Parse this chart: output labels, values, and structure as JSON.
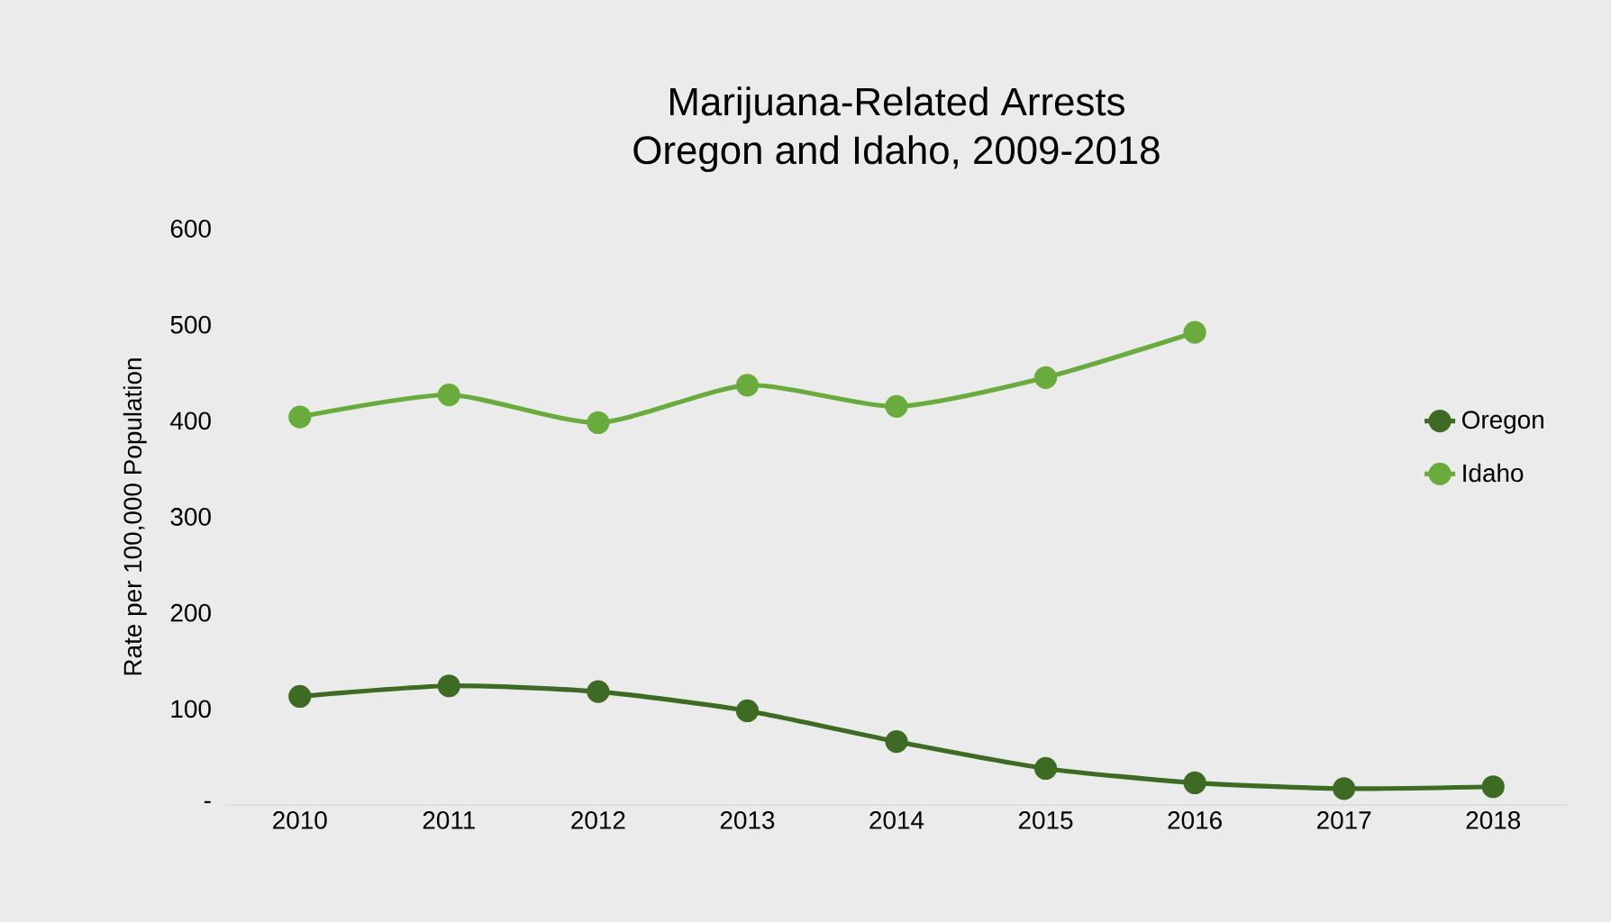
{
  "chart_data": {
    "type": "line",
    "title": "Marijuana-Related Arrests\nOregon and Idaho, 2009-2018",
    "ylabel": "Rate per 100,000 Population",
    "categories": [
      "2010",
      "2011",
      "2012",
      "2013",
      "2014",
      "2015",
      "2016",
      "2017",
      "2018"
    ],
    "series": [
      {
        "name": "Oregon",
        "color": "#3e6b23",
        "values": [
          113,
          124,
          118,
          98,
          66,
          38,
          23,
          17,
          19
        ]
      },
      {
        "name": "Idaho",
        "color": "#6aab3e",
        "values": [
          404,
          427,
          398,
          437,
          415,
          445,
          492,
          null,
          null
        ]
      }
    ],
    "ylim": [
      0,
      600
    ],
    "yticks": [
      {
        "value": 0,
        "label": "-"
      },
      100,
      200,
      300,
      400,
      500,
      600
    ],
    "grid": false,
    "legend": "right",
    "marker": "circle",
    "line_style": "solid"
  }
}
